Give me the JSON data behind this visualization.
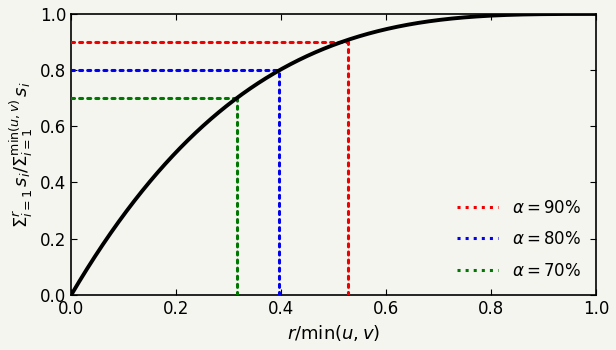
{
  "title": "",
  "xlabel": "$r/\\min(u, v)$",
  "xlim": [
    0.0,
    1.0
  ],
  "ylim": [
    0.0,
    1.0
  ],
  "curve_color": "#000000",
  "curve_linewidth": 2.8,
  "alpha_levels": [
    {
      "alpha": 0.9,
      "r_val": 0.528,
      "color": "#ee0000",
      "label": "$\\alpha = 90\\%$"
    },
    {
      "alpha": 0.8,
      "r_val": 0.395,
      "color": "#0000ee",
      "label": "$\\alpha = 80\\%$"
    },
    {
      "alpha": 0.7,
      "r_val": 0.315,
      "color": "#007700",
      "label": "$\\alpha = 70\\%$"
    }
  ],
  "dotted_linewidth": 2.2,
  "background_color": "#f5f5f0",
  "tick_fontsize": 12,
  "label_fontsize": 13,
  "legend_fontsize": 12,
  "x_ticks": [
    0.0,
    0.2,
    0.4,
    0.6,
    0.8,
    1.0
  ],
  "y_ticks": [
    0.0,
    0.2,
    0.4,
    0.6,
    0.8,
    1.0
  ],
  "curve_power": 3.18
}
